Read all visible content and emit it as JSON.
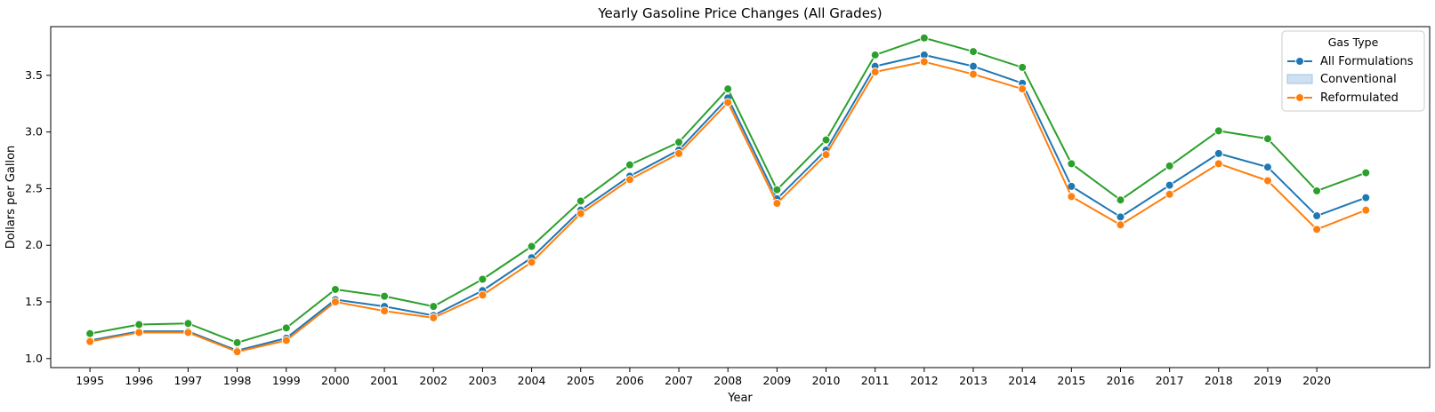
{
  "chart_data": {
    "type": "line",
    "title": "Yearly Gasoline Price Changes (All Grades)",
    "xlabel": "Year",
    "ylabel": "Dollars per Gallon",
    "x": [
      1995,
      1996,
      1997,
      1998,
      1999,
      2000,
      2001,
      2002,
      2003,
      2004,
      2005,
      2006,
      2007,
      2008,
      2009,
      2010,
      2011,
      2012,
      2013,
      2014,
      2015,
      2016,
      2017,
      2018,
      2019,
      2020,
      2021
    ],
    "x_tick_labels": [
      "1995",
      "1996",
      "1997",
      "1998",
      "1999",
      "2000",
      "2001",
      "2002",
      "2003",
      "2004",
      "2005",
      "2006",
      "2007",
      "2008",
      "2009",
      "2010",
      "2011",
      "2012",
      "2013",
      "2014",
      "2015",
      "2016",
      "2017",
      "2018",
      "2019",
      "2020"
    ],
    "y_ticks": [
      1.0,
      1.5,
      2.0,
      2.5,
      3.0,
      3.5
    ],
    "y_tick_labels": [
      "1.0",
      "1.5",
      "2.0",
      "2.5",
      "3.0",
      "3.5"
    ],
    "xlim": [
      1994.2,
      2022.3
    ],
    "ylim": [
      0.92,
      3.93
    ],
    "grid": false,
    "legend": {
      "title": "Gas Type",
      "placement": "top-right",
      "entries": [
        {
          "name": "All Formulations",
          "kind": "line",
          "color": "#1f77b4"
        },
        {
          "name": "Conventional",
          "kind": "patch",
          "color": "#1f77b4"
        },
        {
          "name": "Reformulated",
          "kind": "line",
          "color": "#ff7f0e"
        }
      ]
    },
    "series": [
      {
        "name": "All Formulations",
        "color": "#1f77b4",
        "values": [
          1.16,
          1.24,
          1.24,
          1.07,
          1.18,
          1.52,
          1.46,
          1.38,
          1.6,
          1.89,
          2.31,
          2.61,
          2.84,
          3.3,
          2.41,
          2.84,
          3.58,
          3.68,
          3.58,
          3.43,
          2.52,
          2.25,
          2.53,
          2.81,
          2.69,
          2.26,
          2.42
        ]
      },
      {
        "name": "",
        "color": "#2ca02c",
        "values": [
          1.22,
          1.3,
          1.31,
          1.14,
          1.27,
          1.61,
          1.55,
          1.46,
          1.7,
          1.99,
          2.39,
          2.71,
          2.91,
          3.38,
          2.49,
          2.93,
          3.68,
          3.83,
          3.71,
          3.57,
          2.72,
          2.4,
          2.7,
          3.01,
          2.94,
          2.48,
          2.64
        ]
      },
      {
        "name": "Reformulated",
        "color": "#ff7f0e",
        "values": [
          1.15,
          1.23,
          1.23,
          1.06,
          1.16,
          1.5,
          1.42,
          1.36,
          1.56,
          1.85,
          2.28,
          2.58,
          2.81,
          3.26,
          2.37,
          2.8,
          3.53,
          3.62,
          3.51,
          3.38,
          2.43,
          2.18,
          2.45,
          2.72,
          2.57,
          2.14,
          2.31
        ]
      }
    ]
  }
}
